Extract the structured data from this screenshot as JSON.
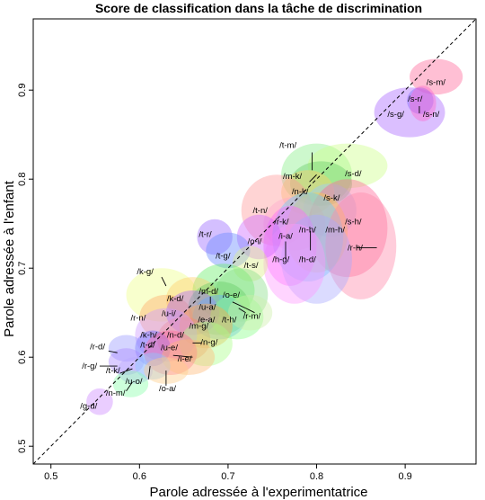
{
  "chart_data": {
    "type": "scatter",
    "title": "Score de classification dans la tâche de discrimination",
    "xlabel": "Parole adressée à l'experimentatrice",
    "ylabel": "Parole adressée à l'enfant",
    "xlim": [
      0.48,
      0.98
    ],
    "ylim": [
      0.48,
      0.98
    ],
    "x_ticks": [
      "0.5",
      "0.6",
      "0.7",
      "0.8",
      "0.9"
    ],
    "y_ticks": [
      "0.5",
      "0.6",
      "0.7",
      "0.8",
      "0.9"
    ],
    "x_tick_values": [
      0.5,
      0.6,
      0.7,
      0.8,
      0.9
    ],
    "y_tick_values": [
      0.5,
      0.6,
      0.7,
      0.8,
      0.9
    ],
    "reference_line": "y = x (dashed)",
    "grid": false,
    "points": [
      {
        "label": "/s-m/",
        "x": 0.935,
        "y": 0.915,
        "rx": 0.03,
        "ry": 0.02,
        "color": "#ff6699"
      },
      {
        "label": "/s-r/",
        "x": 0.917,
        "y": 0.888,
        "rx": 0.015,
        "ry": 0.015,
        "color": "#6666ff"
      },
      {
        "label": "/s-g/",
        "x": 0.905,
        "y": 0.875,
        "rx": 0.04,
        "ry": 0.028,
        "color": "#aa66ff"
      },
      {
        "label": "/s-n/",
        "x": 0.92,
        "y": 0.885,
        "rx": 0.015,
        "ry": 0.02,
        "color": "#ff66cc"
      },
      {
        "label": "/t-m/",
        "x": 0.8,
        "y": 0.805,
        "rx": 0.04,
        "ry": 0.035,
        "color": "#88ee88"
      },
      {
        "label": "/s-d/",
        "x": 0.835,
        "y": 0.815,
        "rx": 0.045,
        "ry": 0.025,
        "color": "#ccff88"
      },
      {
        "label": "/m-k/",
        "x": 0.805,
        "y": 0.795,
        "rx": 0.035,
        "ry": 0.025,
        "color": "#66cc66"
      },
      {
        "label": "/n-k/",
        "x": 0.79,
        "y": 0.785,
        "rx": 0.03,
        "ry": 0.025,
        "color": "#ffcc66"
      },
      {
        "label": "/s-k/",
        "x": 0.815,
        "y": 0.765,
        "rx": 0.03,
        "ry": 0.03,
        "color": "#99ccff"
      },
      {
        "label": "/t-n/",
        "x": 0.755,
        "y": 0.765,
        "rx": 0.04,
        "ry": 0.04,
        "color": "#ff9999"
      },
      {
        "label": "/r-k/",
        "x": 0.775,
        "y": 0.75,
        "rx": 0.035,
        "ry": 0.03,
        "color": "#ffaacc"
      },
      {
        "label": "/s-h/",
        "x": 0.835,
        "y": 0.745,
        "rx": 0.045,
        "ry": 0.055,
        "color": "#ff6699"
      },
      {
        "label": "/m-h/",
        "x": 0.8,
        "y": 0.74,
        "rx": 0.035,
        "ry": 0.045,
        "color": "#ffcc44"
      },
      {
        "label": "/n-h/",
        "x": 0.79,
        "y": 0.735,
        "rx": 0.04,
        "ry": 0.05,
        "color": "#66ccff"
      },
      {
        "label": "/i-a/",
        "x": 0.77,
        "y": 0.725,
        "rx": 0.03,
        "ry": 0.045,
        "color": "#ff66ff"
      },
      {
        "label": "/r-h/",
        "x": 0.85,
        "y": 0.725,
        "rx": 0.04,
        "ry": 0.06,
        "color": "#ff88aa"
      },
      {
        "label": "/h-d/",
        "x": 0.8,
        "y": 0.71,
        "rx": 0.04,
        "ry": 0.05,
        "color": "#aaaaff"
      },
      {
        "label": "/h-g/",
        "x": 0.775,
        "y": 0.705,
        "rx": 0.035,
        "ry": 0.045,
        "color": "#ff99ff"
      },
      {
        "label": "/o-i/",
        "x": 0.735,
        "y": 0.735,
        "rx": 0.025,
        "ry": 0.025,
        "color": "#cc66ff"
      },
      {
        "label": "/t-r/",
        "x": 0.685,
        "y": 0.735,
        "rx": 0.02,
        "ry": 0.02,
        "color": "#9966ff"
      },
      {
        "label": "/t-g/",
        "x": 0.7,
        "y": 0.72,
        "rx": 0.025,
        "ry": 0.02,
        "color": "#6688ff"
      },
      {
        "label": "/t-s/",
        "x": 0.725,
        "y": 0.705,
        "rx": 0.02,
        "ry": 0.02,
        "color": "#ddee88"
      },
      {
        "label": "/k-g/",
        "x": 0.625,
        "y": 0.67,
        "rx": 0.04,
        "ry": 0.03,
        "color": "#eeff88"
      },
      {
        "label": "/m-d/",
        "x": 0.695,
        "y": 0.675,
        "rx": 0.035,
        "ry": 0.03,
        "color": "#66ee66"
      },
      {
        "label": "/o-e/",
        "x": 0.715,
        "y": 0.67,
        "rx": 0.03,
        "ry": 0.03,
        "color": "#88dd88"
      },
      {
        "label": "/k-d/",
        "x": 0.66,
        "y": 0.665,
        "rx": 0.03,
        "ry": 0.025,
        "color": "#ffcc66"
      },
      {
        "label": "/u-a/",
        "x": 0.69,
        "y": 0.655,
        "rx": 0.035,
        "ry": 0.03,
        "color": "#66cc66"
      },
      {
        "label": "/r-n/",
        "x": 0.63,
        "y": 0.645,
        "rx": 0.03,
        "ry": 0.025,
        "color": "#ffaa66"
      },
      {
        "label": "/u-i/",
        "x": 0.66,
        "y": 0.65,
        "rx": 0.03,
        "ry": 0.025,
        "color": "#aa66ff"
      },
      {
        "label": "/e-a/",
        "x": 0.69,
        "y": 0.645,
        "rx": 0.03,
        "ry": 0.025,
        "color": "#66aaff"
      },
      {
        "label": "/t-h/",
        "x": 0.71,
        "y": 0.645,
        "rx": 0.03,
        "ry": 0.025,
        "color": "#88ff88"
      },
      {
        "label": "/r-m/",
        "x": 0.725,
        "y": 0.65,
        "rx": 0.025,
        "ry": 0.02,
        "color": "#cceeaa"
      },
      {
        "label": "/m-g/",
        "x": 0.675,
        "y": 0.635,
        "rx": 0.03,
        "ry": 0.025,
        "color": "#ffaa44"
      },
      {
        "label": "/n-d/",
        "x": 0.65,
        "y": 0.62,
        "rx": 0.03,
        "ry": 0.025,
        "color": "#ff8866"
      },
      {
        "label": "/k-h/",
        "x": 0.63,
        "y": 0.625,
        "rx": 0.035,
        "ry": 0.03,
        "color": "#cc99ff"
      },
      {
        "label": "/n-g/",
        "x": 0.675,
        "y": 0.615,
        "rx": 0.03,
        "ry": 0.025,
        "color": "#aaff88"
      },
      {
        "label": "/t-d/",
        "x": 0.615,
        "y": 0.61,
        "rx": 0.02,
        "ry": 0.02,
        "color": "#6666ff"
      },
      {
        "label": "/u-e/",
        "x": 0.635,
        "y": 0.605,
        "rx": 0.03,
        "ry": 0.025,
        "color": "#ff6699"
      },
      {
        "label": "/i-e/",
        "x": 0.655,
        "y": 0.6,
        "rx": 0.03,
        "ry": 0.02,
        "color": "#ffbb77"
      },
      {
        "label": "/r-d/",
        "x": 0.585,
        "y": 0.61,
        "rx": 0.02,
        "ry": 0.015,
        "color": "#9999ff"
      },
      {
        "label": "/r-g/",
        "x": 0.585,
        "y": 0.595,
        "rx": 0.02,
        "ry": 0.015,
        "color": "#aa88ff"
      },
      {
        "label": "/t-k/",
        "x": 0.595,
        "y": 0.585,
        "rx": 0.02,
        "ry": 0.015,
        "color": "#bbaaff"
      },
      {
        "label": "/u-o/",
        "x": 0.615,
        "y": 0.59,
        "rx": 0.02,
        "ry": 0.015,
        "color": "#88ccff"
      },
      {
        "label": "/o-a/",
        "x": 0.63,
        "y": 0.585,
        "rx": 0.025,
        "ry": 0.015,
        "color": "#ffcc88"
      },
      {
        "label": "/n-m/",
        "x": 0.59,
        "y": 0.57,
        "rx": 0.02,
        "ry": 0.015,
        "color": "#88ffaa"
      },
      {
        "label": "/g-d/",
        "x": 0.555,
        "y": 0.55,
        "rx": 0.015,
        "ry": 0.015,
        "color": "#cc88ff"
      }
    ],
    "labels": [
      {
        "text": "/s-m/",
        "lx": 0.924,
        "ly": 0.906
      },
      {
        "text": "/s-r/",
        "lx": 0.903,
        "ly": 0.887
      },
      {
        "text": "/s-g/",
        "lx": 0.88,
        "ly": 0.87
      },
      {
        "text": "/s-n/",
        "lx": 0.92,
        "ly": 0.87
      },
      {
        "text": "/t-m/",
        "lx": 0.758,
        "ly": 0.835
      },
      {
        "text": "/s-d/",
        "lx": 0.832,
        "ly": 0.803
      },
      {
        "text": "/m-k/",
        "lx": 0.762,
        "ly": 0.8
      },
      {
        "text": "/n-k/",
        "lx": 0.772,
        "ly": 0.783
      },
      {
        "text": "/s-k/",
        "lx": 0.808,
        "ly": 0.776
      },
      {
        "text": "/t-n/",
        "lx": 0.728,
        "ly": 0.762
      },
      {
        "text": "/r-k/",
        "lx": 0.752,
        "ly": 0.749
      },
      {
        "text": "/s-h/",
        "lx": 0.832,
        "ly": 0.749
      },
      {
        "text": "/m-h/",
        "lx": 0.81,
        "ly": 0.74
      },
      {
        "text": "/n-h/",
        "lx": 0.78,
        "ly": 0.74
      },
      {
        "text": "/i-a/",
        "lx": 0.757,
        "ly": 0.733
      },
      {
        "text": "/r-h/",
        "lx": 0.835,
        "ly": 0.72
      },
      {
        "text": "/h-d/",
        "lx": 0.78,
        "ly": 0.707
      },
      {
        "text": "/h-g/",
        "lx": 0.75,
        "ly": 0.707
      },
      {
        "text": "/o-i/",
        "lx": 0.722,
        "ly": 0.727
      },
      {
        "text": "/t-r/",
        "lx": 0.667,
        "ly": 0.735
      },
      {
        "text": "/t-g/",
        "lx": 0.686,
        "ly": 0.711
      },
      {
        "text": "/t-s/",
        "lx": 0.718,
        "ly": 0.7
      },
      {
        "text": "/k-g/",
        "lx": 0.597,
        "ly": 0.693
      },
      {
        "text": "/m-d/",
        "lx": 0.667,
        "ly": 0.671
      },
      {
        "text": "/o-e/",
        "lx": 0.694,
        "ly": 0.667
      },
      {
        "text": "/k-d/",
        "lx": 0.631,
        "ly": 0.663
      },
      {
        "text": "/u-a/",
        "lx": 0.667,
        "ly": 0.653
      },
      {
        "text": "/r-n/",
        "lx": 0.59,
        "ly": 0.641
      },
      {
        "text": "/u-i/",
        "lx": 0.625,
        "ly": 0.646
      },
      {
        "text": "/e-a/",
        "lx": 0.666,
        "ly": 0.639
      },
      {
        "text": "/t-h/",
        "lx": 0.693,
        "ly": 0.639
      },
      {
        "text": "/r-m/",
        "lx": 0.717,
        "ly": 0.643
      },
      {
        "text": "/m-g/",
        "lx": 0.656,
        "ly": 0.632
      },
      {
        "text": "/n-d/",
        "lx": 0.631,
        "ly": 0.622
      },
      {
        "text": "/k-h/",
        "lx": 0.601,
        "ly": 0.622
      },
      {
        "text": "/n-g/",
        "lx": 0.669,
        "ly": 0.614
      },
      {
        "text": "/t-d/",
        "lx": 0.601,
        "ly": 0.611
      },
      {
        "text": "/u-e/",
        "lx": 0.624,
        "ly": 0.608
      },
      {
        "text": "/i-e/",
        "lx": 0.643,
        "ly": 0.595
      },
      {
        "text": "/r-d/",
        "lx": 0.544,
        "ly": 0.609
      },
      {
        "text": "/r-g/",
        "lx": 0.535,
        "ly": 0.587
      },
      {
        "text": "/t-k/",
        "lx": 0.562,
        "ly": 0.582
      },
      {
        "text": "/u-o/",
        "lx": 0.584,
        "ly": 0.57
      },
      {
        "text": "/o-a/",
        "lx": 0.622,
        "ly": 0.562
      },
      {
        "text": "/n-m/",
        "lx": 0.562,
        "ly": 0.557
      },
      {
        "text": "/g-d/",
        "lx": 0.533,
        "ly": 0.542
      }
    ],
    "connectors": [
      {
        "x1": 0.916,
        "y1": 0.882,
        "x2": 0.916,
        "y2": 0.874
      },
      {
        "x1": 0.795,
        "y1": 0.83,
        "x2": 0.795,
        "y2": 0.81
      },
      {
        "x1": 0.792,
        "y1": 0.797,
        "x2": 0.8,
        "y2": 0.805
      },
      {
        "x1": 0.793,
        "y1": 0.742,
        "x2": 0.793,
        "y2": 0.72
      },
      {
        "x1": 0.845,
        "y1": 0.723,
        "x2": 0.868,
        "y2": 0.723
      },
      {
        "x1": 0.765,
        "y1": 0.73,
        "x2": 0.765,
        "y2": 0.71
      },
      {
        "x1": 0.625,
        "y1": 0.69,
        "x2": 0.63,
        "y2": 0.68
      },
      {
        "x1": 0.68,
        "y1": 0.668,
        "x2": 0.68,
        "y2": 0.66
      },
      {
        "x1": 0.705,
        "y1": 0.662,
        "x2": 0.72,
        "y2": 0.655
      },
      {
        "x1": 0.712,
        "y1": 0.655,
        "x2": 0.72,
        "y2": 0.65
      },
      {
        "x1": 0.73,
        "y1": 0.65,
        "x2": 0.72,
        "y2": 0.655
      },
      {
        "x1": 0.66,
        "y1": 0.616,
        "x2": 0.67,
        "y2": 0.616
      },
      {
        "x1": 0.638,
        "y1": 0.602,
        "x2": 0.66,
        "y2": 0.6
      },
      {
        "x1": 0.565,
        "y1": 0.607,
        "x2": 0.575,
        "y2": 0.605
      },
      {
        "x1": 0.555,
        "y1": 0.59,
        "x2": 0.575,
        "y2": 0.59
      },
      {
        "x1": 0.578,
        "y1": 0.582,
        "x2": 0.592,
        "y2": 0.587
      },
      {
        "x1": 0.61,
        "y1": 0.575,
        "x2": 0.612,
        "y2": 0.59
      },
      {
        "x1": 0.63,
        "y1": 0.568,
        "x2": 0.63,
        "y2": 0.585
      },
      {
        "x1": 0.585,
        "y1": 0.562,
        "x2": 0.592,
        "y2": 0.572
      }
    ]
  }
}
